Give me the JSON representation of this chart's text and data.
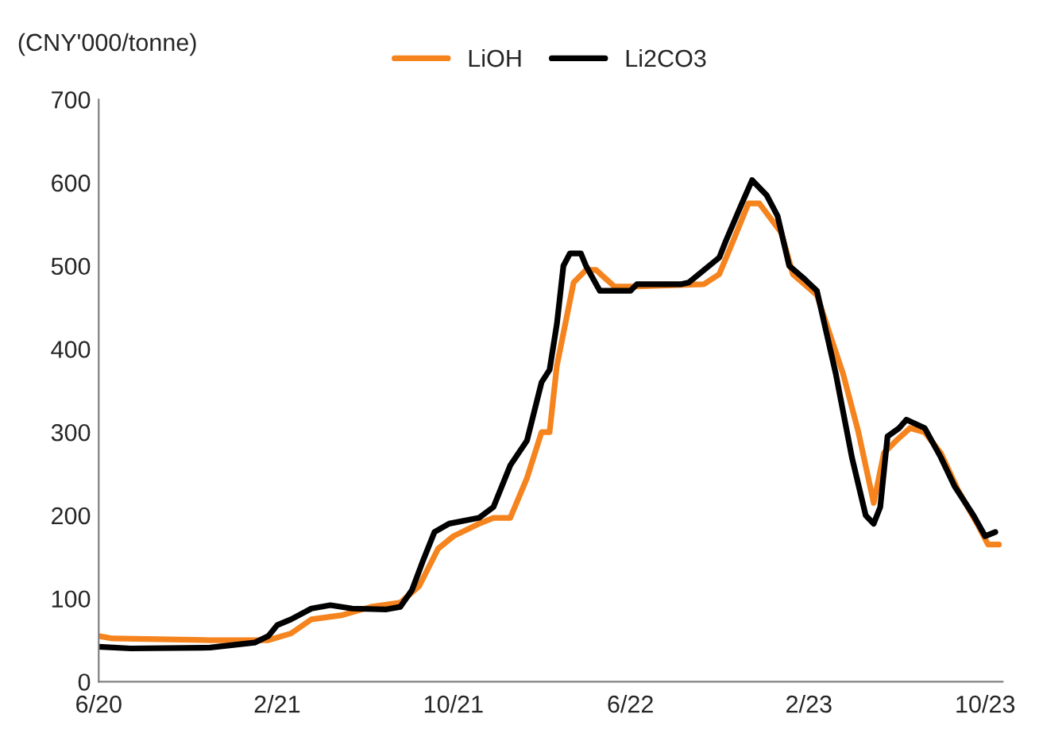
{
  "chart_data": {
    "type": "line",
    "ylabel": "(CNY'000/tonne)",
    "ylim": [
      0,
      700
    ],
    "yticks": [
      0,
      100,
      200,
      300,
      400,
      500,
      600,
      700
    ],
    "xlim": [
      "2020-06-01",
      "2023-10-25"
    ],
    "xticks": [
      {
        "value": "2020-06-01",
        "label": "6/20"
      },
      {
        "value": "2021-02-01",
        "label": "2/21"
      },
      {
        "value": "2021-10-01",
        "label": "10/21"
      },
      {
        "value": "2022-06-01",
        "label": "6/22"
      },
      {
        "value": "2023-02-01",
        "label": "2/23"
      },
      {
        "value": "2023-10-01",
        "label": "10/23"
      }
    ],
    "grid": false,
    "legend": "top",
    "marker": "none",
    "line_style": "solid",
    "series": [
      {
        "name": "LiOH",
        "color": "#f5841f",
        "x": [
          "2020-06-01",
          "2020-06-20",
          "2020-11-01",
          "2021-01-20",
          "2021-02-20",
          "2021-03-20",
          "2021-05-01",
          "2021-06-10",
          "2021-07-20",
          "2021-08-15",
          "2021-09-10",
          "2021-10-01",
          "2021-11-05",
          "2021-11-25",
          "2021-12-18",
          "2022-01-10",
          "2022-01-30",
          "2022-02-10",
          "2022-02-20",
          "2022-03-15",
          "2022-04-01",
          "2022-04-15",
          "2022-05-10",
          "2022-06-01",
          "2022-09-10",
          "2022-10-01",
          "2022-10-20",
          "2022-11-10",
          "2022-11-25",
          "2022-12-25",
          "2023-01-10",
          "2023-02-12",
          "2023-03-01",
          "2023-03-20",
          "2023-04-10",
          "2023-05-01",
          "2023-05-15",
          "2023-06-01",
          "2023-06-20",
          "2023-07-10",
          "2023-08-01",
          "2023-08-25",
          "2023-09-20",
          "2023-10-05",
          "2023-10-20"
        ],
        "values": [
          55,
          52,
          50,
          50,
          58,
          75,
          80,
          90,
          95,
          115,
          160,
          175,
          190,
          197,
          197,
          245,
          300,
          300,
          380,
          480,
          495,
          495,
          475,
          475,
          478,
          490,
          530,
          575,
          575,
          540,
          490,
          465,
          420,
          370,
          300,
          215,
          275,
          290,
          305,
          300,
          275,
          230,
          190,
          165,
          165
        ]
      },
      {
        "name": "Li2CO3",
        "color": "#000000",
        "x": [
          "2020-06-01",
          "2020-07-15",
          "2020-11-01",
          "2021-01-01",
          "2021-01-20",
          "2021-02-01",
          "2021-02-20",
          "2021-03-20",
          "2021-04-15",
          "2021-05-15",
          "2021-07-01",
          "2021-07-20",
          "2021-08-05",
          "2021-08-20",
          "2021-09-05",
          "2021-09-25",
          "2021-11-05",
          "2021-11-25",
          "2021-12-18",
          "2022-01-10",
          "2022-01-30",
          "2022-02-10",
          "2022-02-20",
          "2022-03-01",
          "2022-03-10",
          "2022-03-25",
          "2022-04-01",
          "2022-04-20",
          "2022-06-01",
          "2022-06-10",
          "2022-08-10",
          "2022-08-20",
          "2022-09-10",
          "2022-10-01",
          "2022-10-10",
          "2022-11-01",
          "2022-11-15",
          "2022-12-05",
          "2022-12-20",
          "2023-01-05",
          "2023-01-25",
          "2023-02-12",
          "2023-02-25",
          "2023-03-10",
          "2023-04-01",
          "2023-04-20",
          "2023-05-01",
          "2023-05-10",
          "2023-05-20",
          "2023-06-05",
          "2023-06-15",
          "2023-07-10",
          "2023-08-01",
          "2023-08-20",
          "2023-09-15",
          "2023-10-01",
          "2023-10-15"
        ],
        "values": [
          42,
          40,
          41,
          47,
          55,
          68,
          75,
          88,
          92,
          88,
          87,
          90,
          110,
          145,
          180,
          190,
          197,
          210,
          260,
          290,
          360,
          375,
          430,
          500,
          515,
          515,
          500,
          470,
          470,
          478,
          478,
          480,
          495,
          510,
          530,
          575,
          603,
          585,
          560,
          500,
          485,
          470,
          420,
          370,
          270,
          200,
          190,
          210,
          295,
          305,
          315,
          305,
          270,
          235,
          200,
          175,
          180
        ]
      }
    ]
  }
}
